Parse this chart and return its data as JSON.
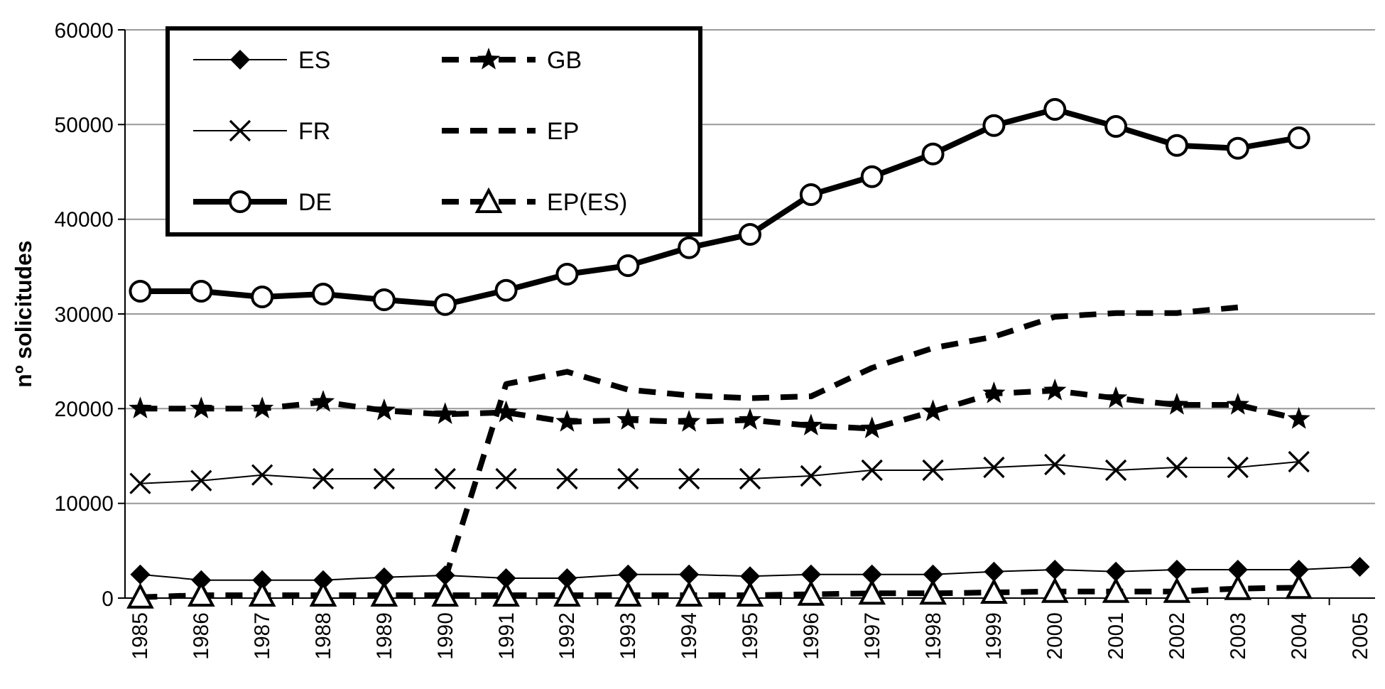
{
  "chart_data": {
    "type": "line",
    "ylabel": "nº solicitudes",
    "categories": [
      "1985",
      "1986",
      "1987",
      "1988",
      "1989",
      "1990",
      "1991",
      "1992",
      "1993",
      "1994",
      "1995",
      "1996",
      "1997",
      "1998",
      "1999",
      "2000",
      "2001",
      "2002",
      "2003",
      "2004",
      "2005"
    ],
    "ylim": [
      0,
      60000
    ],
    "yticks": [
      0,
      10000,
      20000,
      30000,
      40000,
      50000,
      60000
    ],
    "grid": "y",
    "legend": "top left",
    "series": [
      {
        "name": "ES",
        "color": "#000000",
        "marker": "diamond",
        "line_style": "solid",
        "values": [
          2500,
          1900,
          1900,
          1900,
          2200,
          2400,
          2100,
          2100,
          2500,
          2500,
          2300,
          2500,
          2500,
          2500,
          2800,
          3000,
          2800,
          3000,
          3000,
          3000,
          3300
        ]
      },
      {
        "name": "GB",
        "color": "#000000",
        "marker": "star",
        "line_style": "dashed",
        "values": [
          20000,
          20000,
          20000,
          20700,
          19800,
          19400,
          19600,
          18600,
          18800,
          18600,
          18800,
          18200,
          17900,
          19700,
          21600,
          21900,
          21100,
          20400,
          20400,
          18900,
          null
        ]
      },
      {
        "name": "FR",
        "color": "#000000",
        "marker": "cross",
        "line_style": "solid",
        "values": [
          12100,
          12400,
          13000,
          12600,
          12600,
          12600,
          12600,
          12600,
          12600,
          12600,
          12600,
          12900,
          13500,
          13500,
          13800,
          14100,
          13500,
          13800,
          13800,
          14400,
          null
        ]
      },
      {
        "name": "EP",
        "color": "#000000",
        "marker": "none",
        "line_style": "dashed",
        "values": [
          null,
          null,
          null,
          null,
          null,
          2000,
          22600,
          23900,
          22000,
          21400,
          21100,
          21300,
          24300,
          26400,
          27600,
          29700,
          30100,
          30100,
          30700,
          null,
          null
        ]
      },
      {
        "name": "DE",
        "color": "#000000",
        "marker": "circle",
        "line_style": "solid",
        "values": [
          32400,
          32400,
          31800,
          32100,
          31500,
          31000,
          32500,
          34200,
          35100,
          37000,
          38400,
          42600,
          44500,
          46900,
          49900,
          51600,
          49800,
          47800,
          47500,
          48600,
          null
        ]
      },
      {
        "name": "EP(ES)",
        "color": "#000000",
        "marker": "triangle",
        "line_style": "dashed",
        "values": [
          100,
          300,
          300,
          300,
          300,
          300,
          300,
          300,
          300,
          300,
          300,
          400,
          500,
          500,
          600,
          700,
          700,
          700,
          1000,
          1100,
          null
        ]
      }
    ]
  }
}
